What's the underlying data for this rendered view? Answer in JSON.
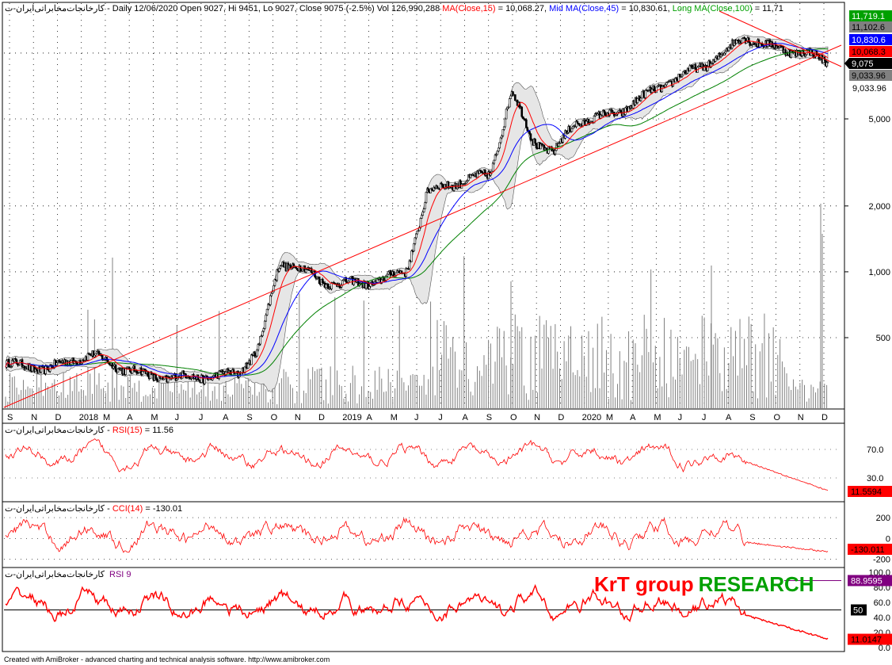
{
  "header": {
    "symbol": "کارخانجات‌مخابراتی‌ایران-ت",
    "desc": " - Daily 12/06/2020 Open 9027, Hi 9451, Lo 9027, Close 9075 (-2.5%) Vol 126,990,288 ",
    "ma_short_label": "MA(Close,15)",
    "ma_short_value": " = 10,068.27, ",
    "ma_mid_label": "Mid MA(Close,45)",
    "ma_mid_value": " = 10,830.61, ",
    "ma_long_label": "Long MA(Close,100)",
    "ma_long_value": " = 11,71"
  },
  "price_axis": {
    "ticks": [
      "5,000",
      "2,000",
      "1,000",
      "500"
    ],
    "tags": [
      {
        "text": "11,719.1",
        "bg": "#00a000",
        "fg": "#ffffff"
      },
      {
        "text": "11,102.6",
        "bg": "#808080",
        "fg": "#000000"
      },
      {
        "text": "10,830.6",
        "bg": "#0000ff",
        "fg": "#ffffff"
      },
      {
        "text": "10,068.3",
        "bg": "#ff0000",
        "fg": "#000000"
      },
      {
        "text": "9,075",
        "bg": "#000000",
        "fg": "#ffffff"
      },
      {
        "text": "9,033.96",
        "bg": "#808080",
        "fg": "#000000"
      }
    ],
    "extra_label": "9,033.96"
  },
  "months": [
    "S",
    "N",
    "D",
    "2018",
    "M",
    "A",
    "M",
    "J",
    "J",
    "A",
    "S",
    "O",
    "N",
    "D",
    "2019",
    "A",
    "M",
    "J",
    "J",
    "A",
    "S",
    "O",
    "N",
    "D",
    "2020",
    "M",
    "A",
    "M",
    "J",
    "J",
    "A",
    "S",
    "O",
    "N",
    "D"
  ],
  "rsi15": {
    "symbol": "کارخانجات‌مخابراتی‌ایران-ت",
    "sep": " - ",
    "label": "RSI(15)",
    "value": " = 11.56",
    "ticks": [
      "70.0",
      "30.0"
    ],
    "tag": "11.5594"
  },
  "cci14": {
    "symbol": "کارخانجات‌مخابراتی‌ایران-ت",
    "sep": " - ",
    "label": "CCI(14)",
    "value": " = -130.01",
    "ticks": [
      "200",
      "0",
      "-200"
    ],
    "tag": "-130.011"
  },
  "rsi9": {
    "symbol": "کارخانجات‌مخابراتی‌ایران-ت",
    "label": "RSI 9",
    "ticks": [
      "100.0",
      "80.0",
      "60.0",
      "40.0",
      "20.0",
      "0.0"
    ],
    "tag_ob": "88.9595",
    "tag_mid": "50",
    "tag_last": "11.0147"
  },
  "branding": {
    "part1": "KrT group",
    "part2": "RESEARCH",
    "color1": "#ff0000",
    "color2": "#00a000"
  },
  "footer": "Created with AmiBroker - advanced charting and technical analysis software. http://www.amibroker.com",
  "chart_data": {
    "type": "line",
    "title": "",
    "xlabel": "",
    "ylabel": "",
    "x_range": [
      "2017-09",
      "2020-12"
    ],
    "y_scale": "log",
    "ylim": [
      300,
      12500
    ],
    "grid": true,
    "series": [
      {
        "name": "Close",
        "x": [
          "2017-09",
          "2017-11",
          "2018-01",
          "2018-02",
          "2018-04",
          "2018-06",
          "2018-08",
          "2018-09",
          "2018-10",
          "2018-11",
          "2018-12",
          "2019-02",
          "2019-04",
          "2019-05",
          "2019-06",
          "2019-08",
          "2019-09",
          "2019-10",
          "2019-11",
          "2019-12",
          "2020-02",
          "2020-04",
          "2020-06",
          "2020-07",
          "2020-08",
          "2020-09",
          "2020-10",
          "2020-11",
          "2020-12"
        ],
        "values": [
          380,
          360,
          420,
          380,
          330,
          330,
          340,
          450,
          1100,
          1050,
          900,
          880,
          1000,
          2300,
          2500,
          2800,
          6700,
          4000,
          3500,
          4800,
          5300,
          7000,
          8700,
          9800,
          12000,
          10800,
          10400,
          10000,
          9075
        ]
      },
      {
        "name": "MA(Close,15)",
        "values": [
          10068.27
        ]
      },
      {
        "name": "Mid MA(Close,45)",
        "values": [
          10830.61
        ]
      },
      {
        "name": "Long MA(Close,100)",
        "values": [
          11719.1
        ]
      }
    ],
    "indicators": [
      {
        "name": "RSI(15)",
        "last": 11.56,
        "levels": [
          70,
          30
        ]
      },
      {
        "name": "CCI(14)",
        "last": -130.01,
        "levels": [
          200,
          0,
          -200
        ]
      },
      {
        "name": "RSI 9",
        "last": 11.0147,
        "levels": [
          100,
          80,
          60,
          40,
          20,
          0
        ]
      }
    ]
  }
}
